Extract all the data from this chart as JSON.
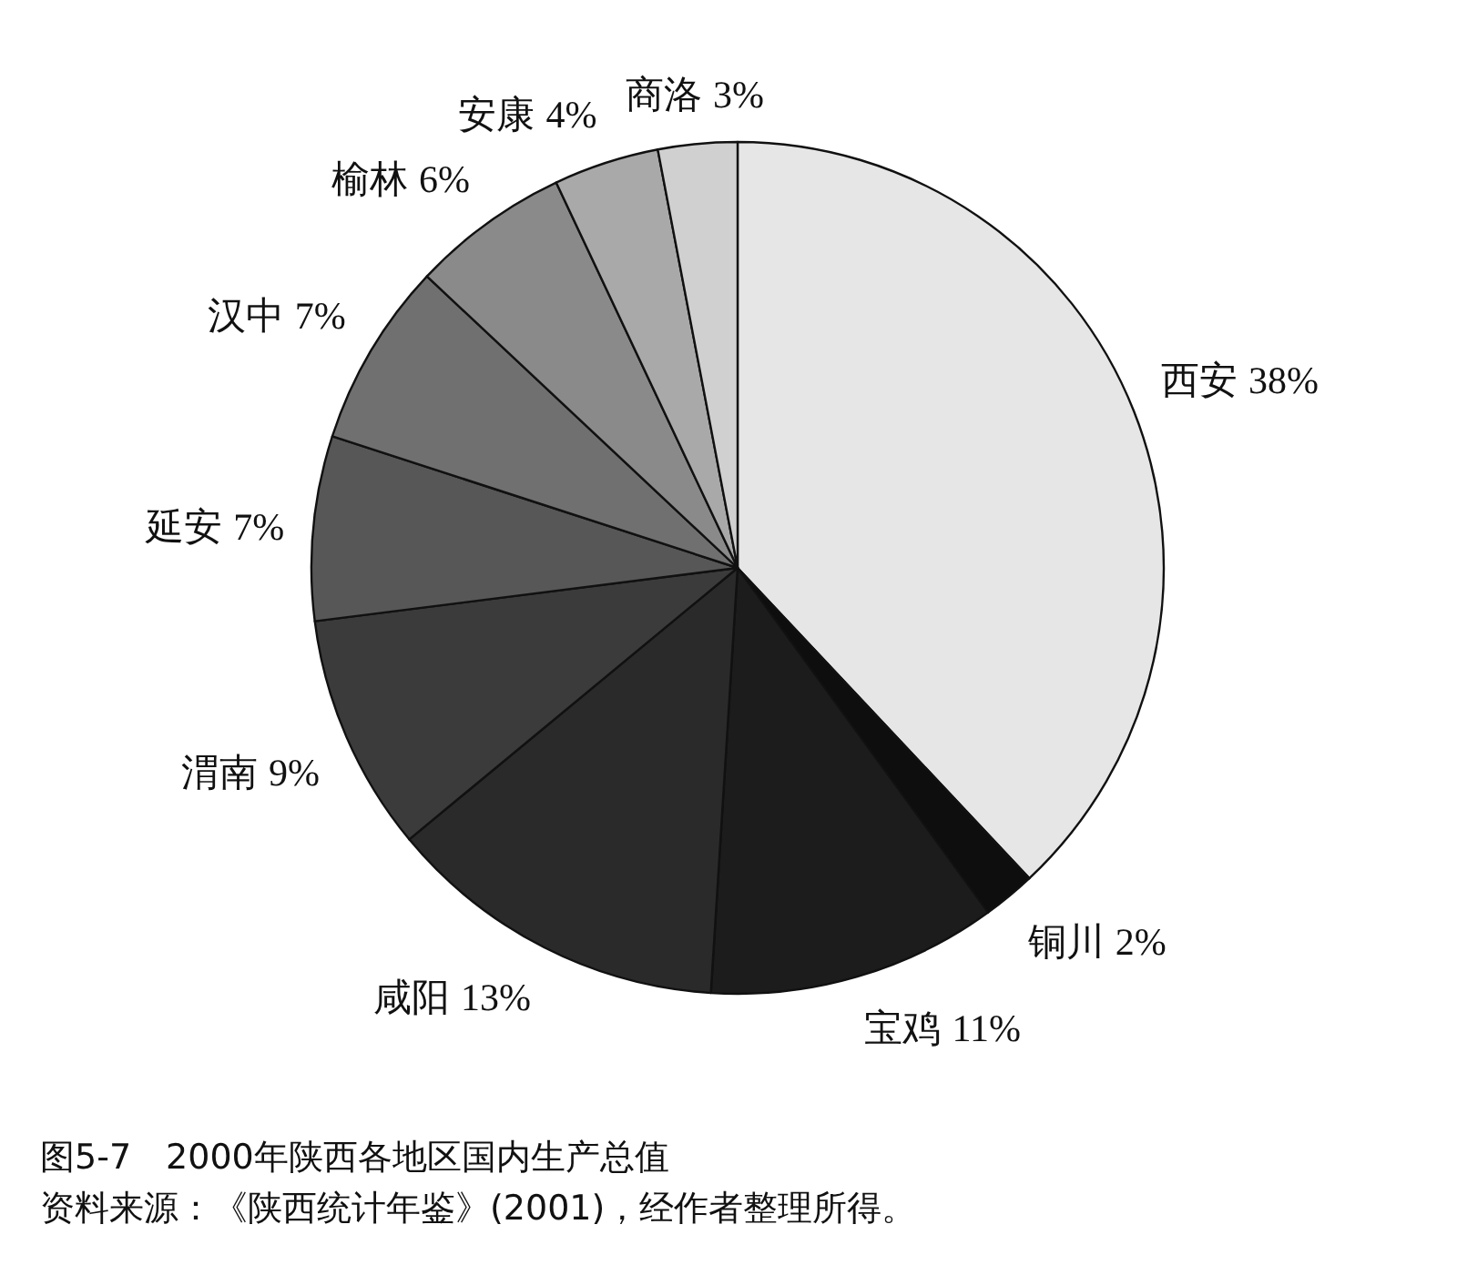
{
  "chart_data": {
    "type": "pie",
    "title": "图5-7　2000年陕西各地区国内生产总值",
    "categories": [
      "西安",
      "铜川",
      "宝鸡",
      "咸阳",
      "渭南",
      "延安",
      "汉中",
      "榆林",
      "安康",
      "商洛"
    ],
    "values": [
      38,
      2,
      11,
      13,
      9,
      7,
      7,
      6,
      4,
      3
    ],
    "colors": [
      "#e6e6e6",
      "#0e0e0e",
      "#1c1c1c",
      "#2a2a2a",
      "#3b3b3b",
      "#575757",
      "#707070",
      "#8a8a8a",
      "#a9a9a9",
      "#d0d0d0"
    ],
    "value_labels": [
      "38%",
      "2%",
      "11%",
      "13%",
      "9%",
      "7%",
      "7%",
      "6%",
      "4%",
      "3%"
    ],
    "annotations": [
      "资料来源：《陕西统计年鉴》(2001)，经作者整理所得。"
    ]
  }
}
